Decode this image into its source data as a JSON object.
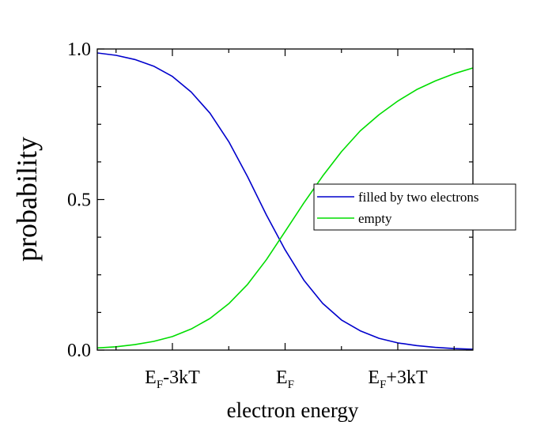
{
  "chart_data": {
    "type": "line",
    "xlabel": "electron energy",
    "ylabel": "probability",
    "xlim": [
      -5,
      5
    ],
    "ylim": [
      0,
      1
    ],
    "grid": false,
    "legend_position": "center-right",
    "x_ticks": [
      {
        "value": -3,
        "main": "E",
        "sub": "F",
        "rest": "-3kT"
      },
      {
        "value": 0,
        "main": "E",
        "sub": "F",
        "rest": ""
      },
      {
        "value": 3,
        "main": "E",
        "sub": "F",
        "rest": "+3kT"
      }
    ],
    "y_ticks": [
      {
        "value": 0,
        "label": "0.0"
      },
      {
        "value": 0.5,
        "label": "0.5"
      },
      {
        "value": 1,
        "label": "1.0"
      }
    ],
    "x": [
      -5,
      -4.5,
      -4,
      -3.5,
      -3,
      -2.5,
      -2,
      -1.5,
      -1,
      -0.5,
      0,
      0.5,
      1,
      1.5,
      2,
      2.5,
      3,
      3.5,
      4,
      4.5,
      5
    ],
    "series": [
      {
        "name": "filled by two electrons",
        "color": "#0000cc",
        "values": [
          0.987,
          0.979,
          0.965,
          0.943,
          0.909,
          0.857,
          0.787,
          0.692,
          0.576,
          0.449,
          0.333,
          0.232,
          0.155,
          0.1,
          0.064,
          0.039,
          0.024,
          0.015,
          0.009,
          0.005,
          0.003
        ]
      },
      {
        "name": "empty",
        "color": "#00dd00",
        "values": [
          0.007,
          0.011,
          0.018,
          0.029,
          0.045,
          0.07,
          0.105,
          0.154,
          0.218,
          0.3,
          0.394,
          0.489,
          0.578,
          0.659,
          0.728,
          0.782,
          0.827,
          0.865,
          0.894,
          0.918,
          0.937
        ]
      }
    ]
  }
}
